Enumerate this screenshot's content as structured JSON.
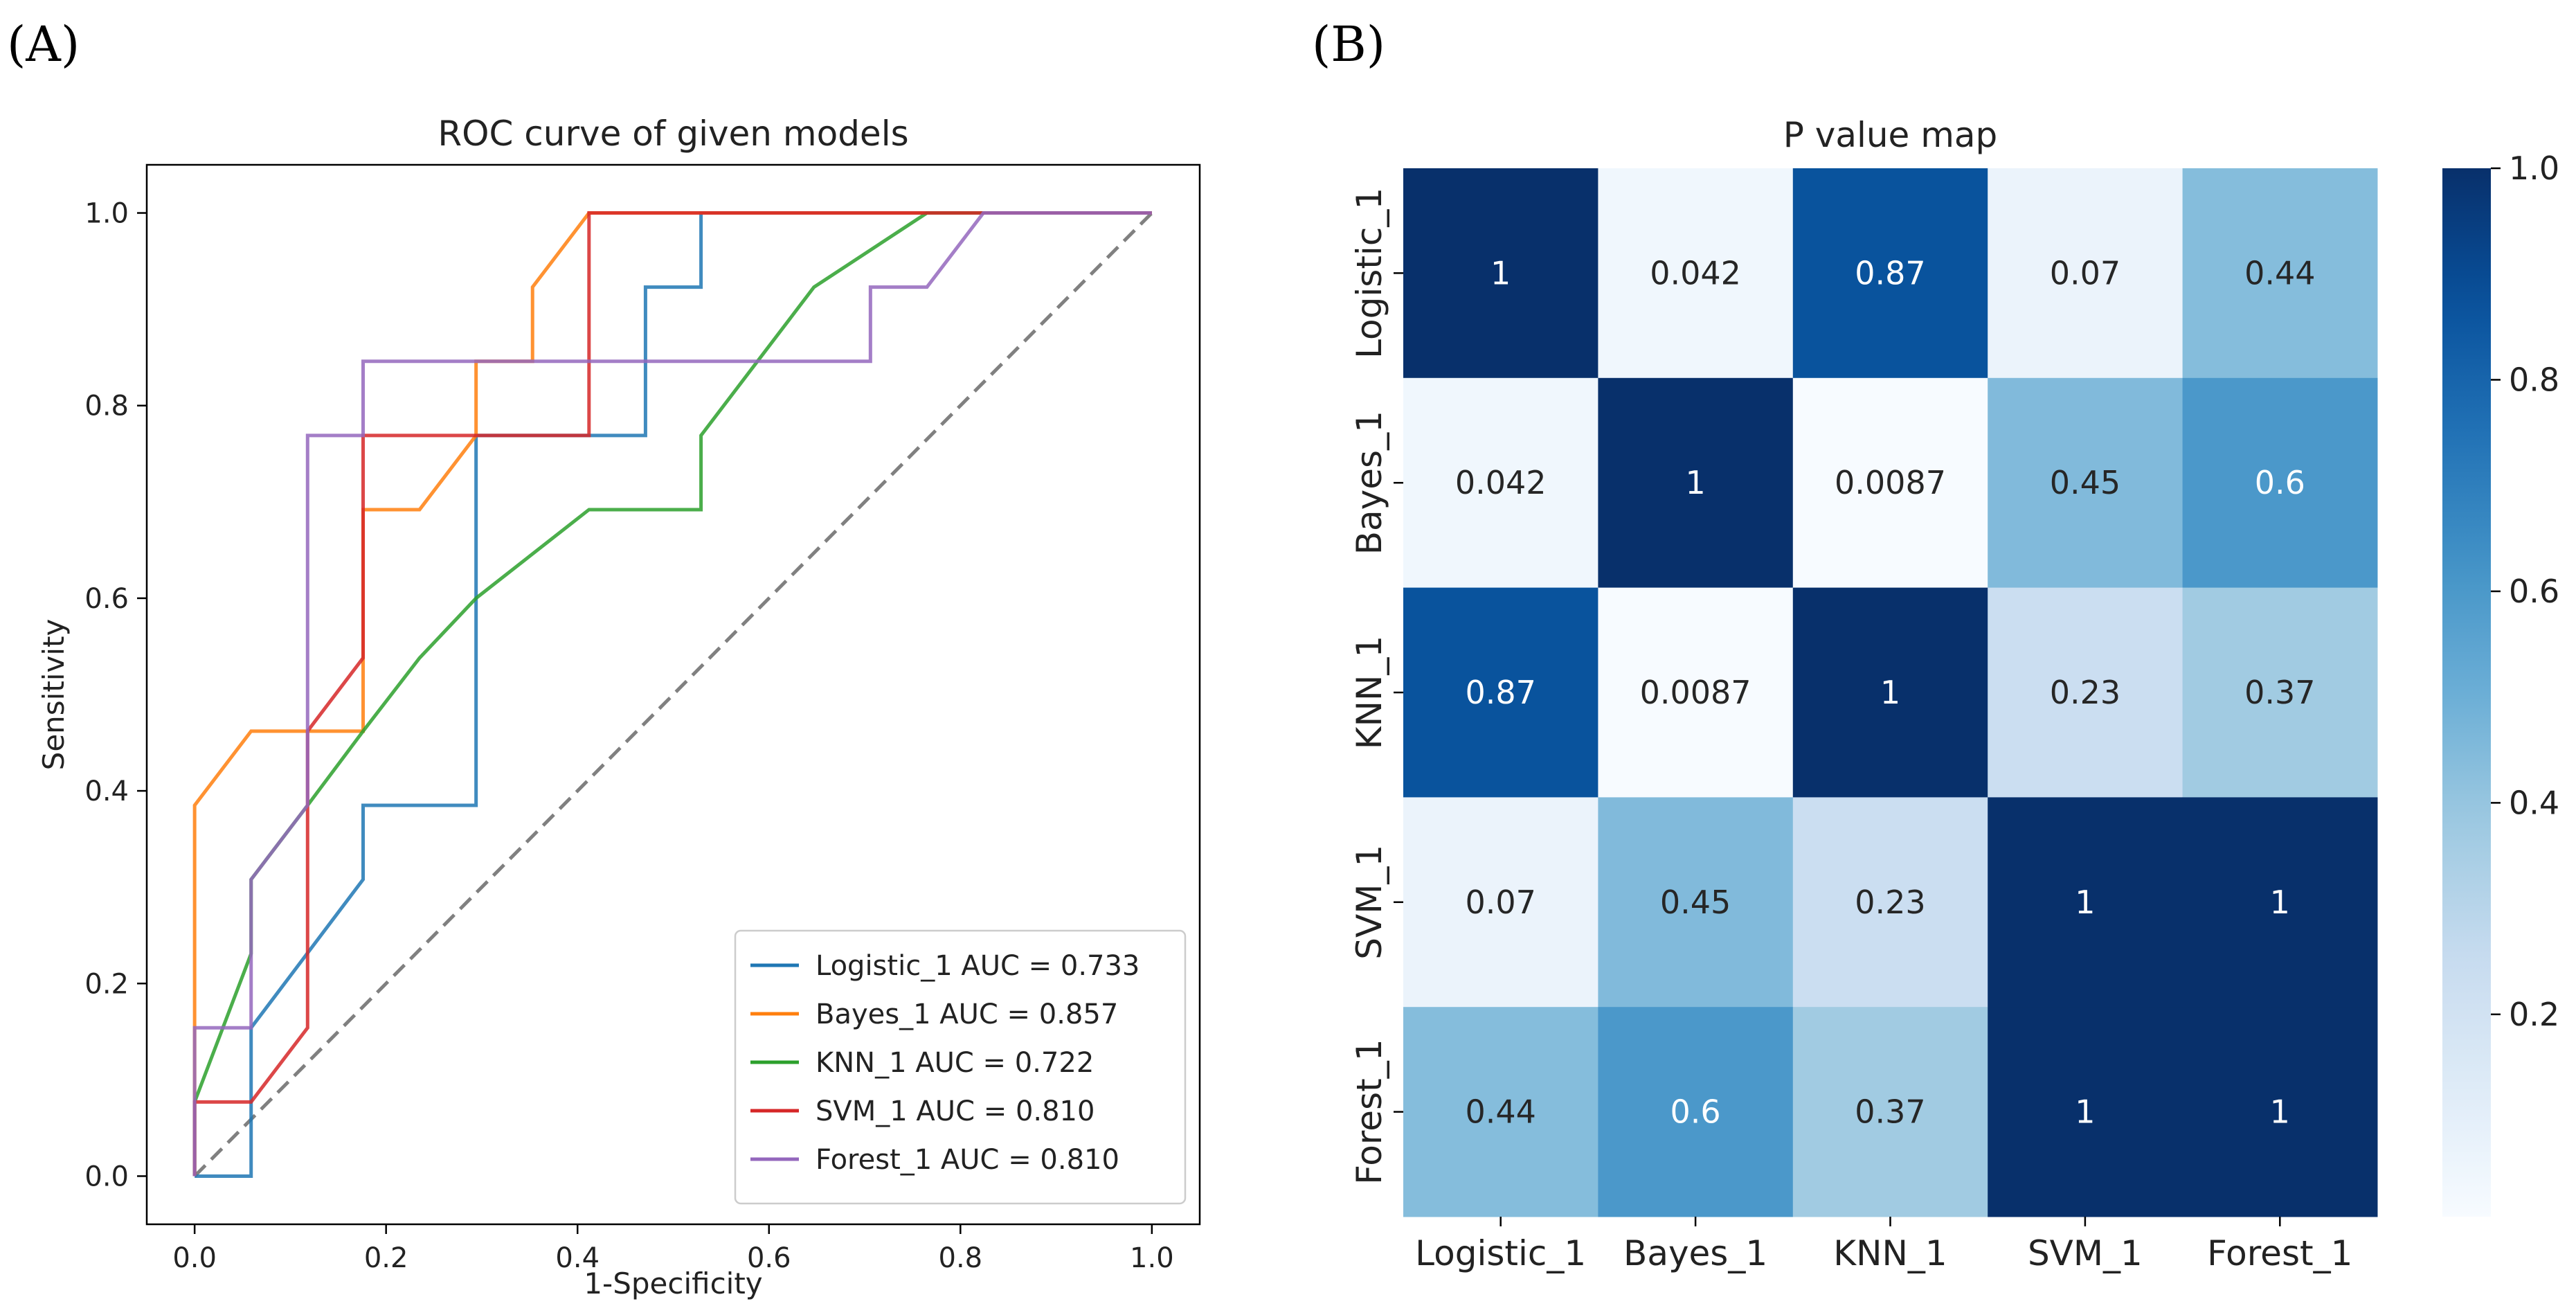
{
  "panels": {
    "a_label": "(A)",
    "b_label": "(B)"
  },
  "chart_data": [
    {
      "type": "line",
      "title": "ROC curve of given models",
      "xlabel": "1-Specificity",
      "ylabel": "Sensitivity",
      "xlim": [
        -0.05,
        1.05
      ],
      "ylim": [
        -0.05,
        1.05
      ],
      "xticks": [
        0.0,
        0.2,
        0.4,
        0.6,
        0.8,
        1.0
      ],
      "xtick_labels": [
        "0.0",
        "0.2",
        "0.4",
        "0.6",
        "0.8",
        "1.0"
      ],
      "yticks": [
        0.0,
        0.2,
        0.4,
        0.6,
        0.8,
        1.0
      ],
      "ytick_labels": [
        "0.0",
        "0.2",
        "0.4",
        "0.6",
        "0.8",
        "1.0"
      ],
      "legend_position": "lower-right",
      "series": [
        {
          "name": "Logistic_1 AUC = 0.733",
          "color": "#1f77b4",
          "x": [
            0,
            0.059,
            0.059,
            0.176,
            0.176,
            0.294,
            0.294,
            0.412,
            0.412,
            0.471,
            0.471,
            0.529,
            0.529,
            1.0
          ],
          "y": [
            0,
            0,
            0.154,
            0.308,
            0.385,
            0.385,
            0.769,
            0.769,
            0.769,
            0.769,
            0.923,
            0.923,
            1.0,
            1.0
          ]
        },
        {
          "name": "Bayes_1 AUC = 0.857",
          "color": "#ff7f0e",
          "x": [
            0,
            0,
            0.059,
            0.176,
            0.176,
            0.235,
            0.294,
            0.294,
            0.353,
            0.353,
            0.412,
            1.0
          ],
          "y": [
            0,
            0.385,
            0.462,
            0.462,
            0.692,
            0.692,
            0.769,
            0.846,
            0.846,
            0.923,
            1.0,
            1.0
          ]
        },
        {
          "name": "KNN_1 AUC = 0.722",
          "color": "#2ca02c",
          "x": [
            0,
            0,
            0.059,
            0.059,
            0.118,
            0.176,
            0.235,
            0.294,
            0.412,
            0.529,
            0.529,
            0.647,
            0.765,
            1.0
          ],
          "y": [
            0,
            0.077,
            0.231,
            0.308,
            0.385,
            0.462,
            0.538,
            0.6,
            0.692,
            0.692,
            0.769,
            0.923,
            1.0,
            1.0
          ]
        },
        {
          "name": "SVM_1 AUC = 0.810",
          "color": "#d62728",
          "x": [
            0,
            0,
            0.059,
            0.118,
            0.118,
            0.176,
            0.176,
            0.412,
            0.412,
            1.0
          ],
          "y": [
            0,
            0.077,
            0.077,
            0.154,
            0.462,
            0.538,
            0.769,
            0.769,
            1.0,
            1.0
          ]
        },
        {
          "name": "Forest_1 AUC = 0.810",
          "color": "#9467bd",
          "x": [
            0,
            0,
            0.059,
            0.059,
            0.118,
            0.118,
            0.176,
            0.176,
            0.706,
            0.706,
            0.765,
            0.824,
            1.0
          ],
          "y": [
            0,
            0.154,
            0.154,
            0.308,
            0.385,
            0.769,
            0.769,
            0.846,
            0.846,
            0.923,
            0.923,
            1.0,
            1.0
          ]
        }
      ],
      "reference_line": {
        "x": [
          0,
          1
        ],
        "y": [
          0,
          1
        ],
        "color": "#808080",
        "style": "dashed"
      }
    },
    {
      "type": "heatmap",
      "title": "P value map",
      "x_categories": [
        "Logistic_1",
        "Bayes_1",
        "KNN_1",
        "SVM_1",
        "Forest_1"
      ],
      "y_categories": [
        "Logistic_1",
        "Bayes_1",
        "KNN_1",
        "SVM_1",
        "Forest_1"
      ],
      "values": [
        [
          1,
          0.042,
          0.87,
          0.07,
          0.44
        ],
        [
          0.042,
          1,
          0.0087,
          0.45,
          0.6
        ],
        [
          0.87,
          0.0087,
          1,
          0.23,
          0.37
        ],
        [
          0.07,
          0.45,
          0.23,
          1,
          1
        ],
        [
          0.44,
          0.6,
          0.37,
          1,
          1
        ]
      ],
      "value_labels": [
        [
          "1",
          "0.042",
          "0.87",
          "0.07",
          "0.44"
        ],
        [
          "0.042",
          "1",
          "0.0087",
          "0.45",
          "0.6"
        ],
        [
          "0.87",
          "0.0087",
          "1",
          "0.23",
          "0.37"
        ],
        [
          "0.07",
          "0.45",
          "0.23",
          "1",
          "1"
        ],
        [
          "0.44",
          "0.6",
          "0.37",
          "1",
          "1"
        ]
      ],
      "colormap": "Blues",
      "colorbar_range": [
        0.0087,
        1.0
      ],
      "colorbar_ticks": [
        0.2,
        0.4,
        0.6,
        0.8,
        1.0
      ],
      "colorbar_tick_labels": [
        "0.2",
        "0.4",
        "0.6",
        "0.8",
        "1.0"
      ]
    }
  ]
}
